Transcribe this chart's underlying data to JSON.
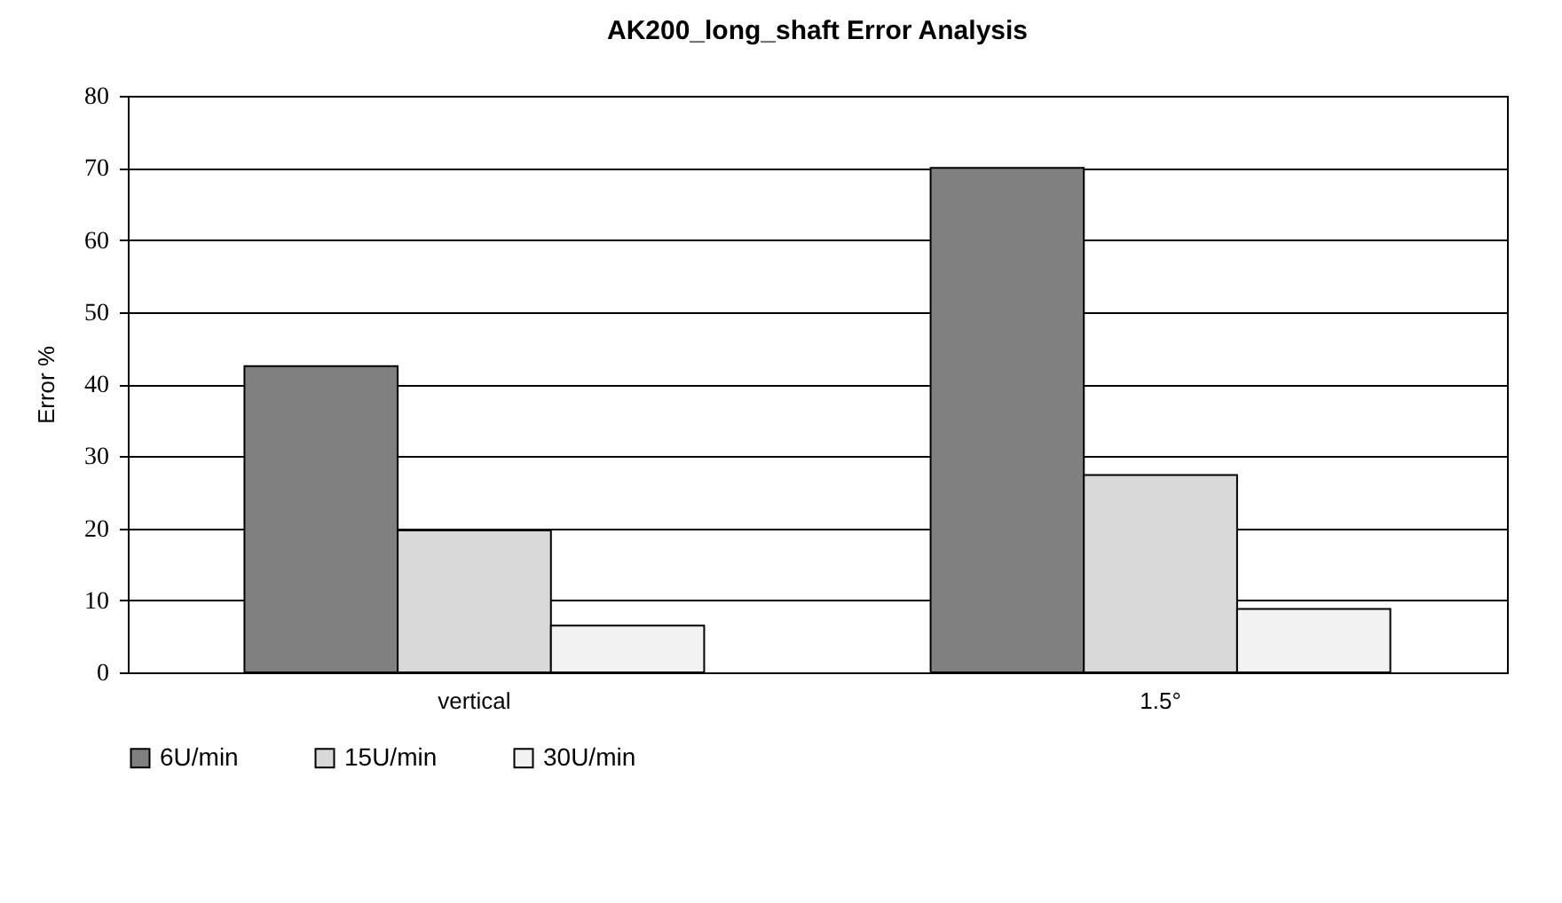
{
  "chart_data": {
    "type": "bar",
    "title": "AK200_long_shaft Error Analysis",
    "ylabel": "Error %",
    "categories": [
      "vertical",
      "1.5°"
    ],
    "series": [
      {
        "name": "6U/min",
        "color": "#808080",
        "values": [
          42.5,
          70
        ]
      },
      {
        "name": "15U/min",
        "color": "#d9d9d9",
        "values": [
          19.7,
          27.4
        ]
      },
      {
        "name": "30U/min",
        "color": "#f2f2f2",
        "values": [
          6.5,
          8.8
        ]
      }
    ],
    "ylim": [
      0,
      80
    ],
    "yticks": [
      0,
      10,
      20,
      30,
      40,
      50,
      60,
      70,
      80
    ],
    "grid": "y",
    "legend": "bottom"
  }
}
